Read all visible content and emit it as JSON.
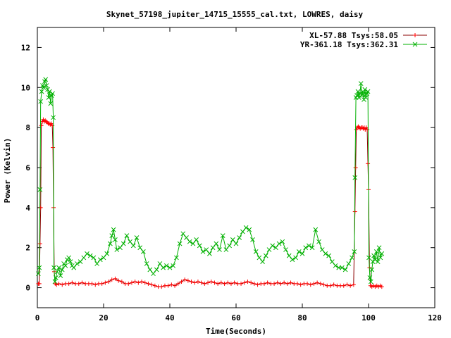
{
  "chart_data": {
    "type": "line",
    "title": "Skynet_57198_jupiter_14715_15555_cal.txt, LOWRES, daisy",
    "xlabel": "Time(Seconds)",
    "ylabel": "Power (Kelvin)",
    "xlim": [
      0,
      120
    ],
    "ylim": [
      -1,
      13
    ],
    "x_ticks": [
      0,
      20,
      40,
      60,
      80,
      100,
      120
    ],
    "y_ticks": [
      0,
      2,
      4,
      6,
      8,
      10,
      12
    ],
    "grid": false,
    "legend_position": "top-right",
    "series": [
      {
        "name": "XL-57.88 Tsys:58.05",
        "color": "#ff0000",
        "line_color": "#8b0000",
        "marker": "plus",
        "points": [
          [
            0.3,
            0.2
          ],
          [
            0.6,
            0.2
          ],
          [
            0.8,
            2.2
          ],
          [
            1.0,
            4.0
          ],
          [
            1.2,
            8.1
          ],
          [
            1.5,
            8.3
          ],
          [
            1.8,
            8.4
          ],
          [
            2.1,
            8.3
          ],
          [
            2.4,
            8.35
          ],
          [
            2.7,
            8.3
          ],
          [
            3.0,
            8.25
          ],
          [
            3.3,
            8.2
          ],
          [
            3.6,
            8.2
          ],
          [
            3.9,
            8.15
          ],
          [
            4.2,
            8.2
          ],
          [
            4.5,
            8.1
          ],
          [
            4.7,
            7.0
          ],
          [
            4.9,
            4.0
          ],
          [
            5.1,
            0.8
          ],
          [
            5.4,
            0.2
          ],
          [
            5.8,
            0.15
          ],
          [
            6.5,
            0.2
          ],
          [
            7.5,
            0.15
          ],
          [
            8.5,
            0.2
          ],
          [
            9.5,
            0.2
          ],
          [
            10.5,
            0.25
          ],
          [
            11.5,
            0.2
          ],
          [
            12.5,
            0.2
          ],
          [
            13.5,
            0.25
          ],
          [
            14.5,
            0.2
          ],
          [
            15.5,
            0.2
          ],
          [
            16.5,
            0.2
          ],
          [
            17.5,
            0.15
          ],
          [
            18.5,
            0.2
          ],
          [
            19.5,
            0.2
          ],
          [
            20.5,
            0.25
          ],
          [
            21.5,
            0.3
          ],
          [
            22.5,
            0.4
          ],
          [
            23.5,
            0.45
          ],
          [
            24.5,
            0.35
          ],
          [
            25.5,
            0.3
          ],
          [
            26.5,
            0.2
          ],
          [
            27.5,
            0.2
          ],
          [
            28.5,
            0.25
          ],
          [
            29.5,
            0.3
          ],
          [
            30.5,
            0.25
          ],
          [
            31.5,
            0.3
          ],
          [
            32.5,
            0.25
          ],
          [
            33.5,
            0.2
          ],
          [
            34.5,
            0.15
          ],
          [
            35.5,
            0.1
          ],
          [
            36.5,
            0.05
          ],
          [
            37.5,
            0.05
          ],
          [
            38.5,
            0.1
          ],
          [
            39.5,
            0.1
          ],
          [
            40.5,
            0.15
          ],
          [
            41.5,
            0.1
          ],
          [
            42.5,
            0.2
          ],
          [
            43.5,
            0.3
          ],
          [
            44.5,
            0.4
          ],
          [
            45.5,
            0.35
          ],
          [
            46.5,
            0.3
          ],
          [
            47.5,
            0.25
          ],
          [
            48.5,
            0.3
          ],
          [
            49.5,
            0.25
          ],
          [
            50.5,
            0.2
          ],
          [
            51.5,
            0.25
          ],
          [
            52.5,
            0.3
          ],
          [
            53.5,
            0.25
          ],
          [
            54.5,
            0.2
          ],
          [
            55.5,
            0.25
          ],
          [
            56.5,
            0.2
          ],
          [
            57.5,
            0.25
          ],
          [
            58.5,
            0.2
          ],
          [
            59.5,
            0.25
          ],
          [
            60.5,
            0.2
          ],
          [
            61.5,
            0.2
          ],
          [
            62.5,
            0.25
          ],
          [
            63.5,
            0.3
          ],
          [
            64.5,
            0.25
          ],
          [
            65.5,
            0.2
          ],
          [
            66.5,
            0.15
          ],
          [
            67.5,
            0.2
          ],
          [
            68.5,
            0.2
          ],
          [
            69.5,
            0.25
          ],
          [
            70.5,
            0.2
          ],
          [
            71.5,
            0.2
          ],
          [
            72.5,
            0.25
          ],
          [
            73.5,
            0.2
          ],
          [
            74.5,
            0.25
          ],
          [
            75.5,
            0.2
          ],
          [
            76.5,
            0.25
          ],
          [
            77.5,
            0.2
          ],
          [
            78.5,
            0.2
          ],
          [
            79.5,
            0.15
          ],
          [
            80.5,
            0.2
          ],
          [
            81.5,
            0.2
          ],
          [
            82.5,
            0.15
          ],
          [
            83.5,
            0.2
          ],
          [
            84.5,
            0.25
          ],
          [
            85.5,
            0.2
          ],
          [
            86.5,
            0.15
          ],
          [
            87.5,
            0.1
          ],
          [
            88.5,
            0.1
          ],
          [
            89.5,
            0.15
          ],
          [
            90.5,
            0.1
          ],
          [
            91.5,
            0.1
          ],
          [
            92.5,
            0.1
          ],
          [
            93.5,
            0.15
          ],
          [
            94.5,
            0.1
          ],
          [
            95.5,
            0.15
          ],
          [
            95.9,
            3.8
          ],
          [
            96.1,
            6.0
          ],
          [
            96.3,
            7.9
          ],
          [
            96.6,
            8.0
          ],
          [
            96.9,
            8.05
          ],
          [
            97.2,
            8.0
          ],
          [
            97.5,
            7.95
          ],
          [
            97.8,
            8.0
          ],
          [
            98.1,
            8.0
          ],
          [
            98.4,
            7.95
          ],
          [
            98.7,
            8.0
          ],
          [
            99.0,
            7.9
          ],
          [
            99.3,
            8.0
          ],
          [
            99.6,
            7.9
          ],
          [
            99.8,
            6.2
          ],
          [
            100.0,
            4.9
          ],
          [
            100.3,
            1.0
          ],
          [
            100.6,
            0.1
          ],
          [
            101.0,
            0.05
          ],
          [
            101.5,
            0.1
          ],
          [
            102.0,
            0.05
          ],
          [
            102.5,
            0.1
          ],
          [
            103.0,
            0.05
          ],
          [
            103.5,
            0.1
          ],
          [
            104.0,
            0.05
          ]
        ]
      },
      {
        "name": "YR-361.18 Tsys:362.31",
        "color": "#00b000",
        "line_color": "#00b000",
        "marker": "cross",
        "points": [
          [
            0.3,
            0.7
          ],
          [
            0.6,
            1.0
          ],
          [
            0.8,
            4.9
          ],
          [
            1.0,
            9.3
          ],
          [
            1.3,
            9.8
          ],
          [
            1.6,
            10.1
          ],
          [
            1.9,
            10.0
          ],
          [
            2.2,
            10.3
          ],
          [
            2.5,
            10.4
          ],
          [
            2.8,
            10.1
          ],
          [
            3.1,
            9.9
          ],
          [
            3.4,
            9.5
          ],
          [
            3.7,
            9.8
          ],
          [
            4.0,
            9.2
          ],
          [
            4.3,
            9.6
          ],
          [
            4.6,
            9.7
          ],
          [
            4.8,
            8.5
          ],
          [
            5.0,
            1.0
          ],
          [
            5.3,
            0.3
          ],
          [
            5.6,
            0.5
          ],
          [
            6.0,
            0.8
          ],
          [
            6.5,
            1.0
          ],
          [
            7.0,
            0.6
          ],
          [
            7.5,
            0.9
          ],
          [
            8.0,
            1.2
          ],
          [
            8.5,
            1.1
          ],
          [
            9.0,
            1.4
          ],
          [
            9.5,
            1.5
          ],
          [
            10.0,
            1.3
          ],
          [
            10.5,
            1.1
          ],
          [
            11.0,
            1.0
          ],
          [
            12.0,
            1.2
          ],
          [
            13.0,
            1.3
          ],
          [
            14.0,
            1.5
          ],
          [
            15.0,
            1.7
          ],
          [
            16.0,
            1.6
          ],
          [
            17.0,
            1.5
          ],
          [
            18.0,
            1.2
          ],
          [
            19.0,
            1.4
          ],
          [
            20.0,
            1.5
          ],
          [
            21.0,
            1.7
          ],
          [
            22.0,
            2.2
          ],
          [
            22.5,
            2.6
          ],
          [
            23.0,
            2.9
          ],
          [
            23.5,
            2.4
          ],
          [
            24.0,
            1.9
          ],
          [
            25.0,
            2.0
          ],
          [
            26.0,
            2.2
          ],
          [
            27.0,
            2.6
          ],
          [
            28.0,
            2.3
          ],
          [
            29.0,
            2.1
          ],
          [
            30.0,
            2.5
          ],
          [
            31.0,
            2.0
          ],
          [
            32.0,
            1.8
          ],
          [
            33.0,
            1.2
          ],
          [
            34.0,
            0.9
          ],
          [
            35.0,
            0.7
          ],
          [
            36.0,
            0.9
          ],
          [
            37.0,
            1.2
          ],
          [
            38.0,
            1.0
          ],
          [
            39.0,
            1.1
          ],
          [
            40.0,
            1.0
          ],
          [
            41.0,
            1.1
          ],
          [
            42.0,
            1.5
          ],
          [
            43.0,
            2.2
          ],
          [
            44.0,
            2.7
          ],
          [
            45.0,
            2.5
          ],
          [
            46.0,
            2.3
          ],
          [
            47.0,
            2.2
          ],
          [
            48.0,
            2.4
          ],
          [
            49.0,
            2.1
          ],
          [
            50.0,
            1.8
          ],
          [
            51.0,
            1.9
          ],
          [
            52.0,
            1.7
          ],
          [
            53.0,
            2.0
          ],
          [
            54.0,
            2.2
          ],
          [
            55.0,
            1.9
          ],
          [
            56.0,
            2.6
          ],
          [
            57.0,
            1.9
          ],
          [
            58.0,
            2.1
          ],
          [
            59.0,
            2.4
          ],
          [
            60.0,
            2.2
          ],
          [
            61.0,
            2.5
          ],
          [
            62.0,
            2.8
          ],
          [
            63.0,
            3.0
          ],
          [
            64.0,
            2.9
          ],
          [
            65.0,
            2.4
          ],
          [
            66.0,
            1.8
          ],
          [
            67.0,
            1.5
          ],
          [
            68.0,
            1.3
          ],
          [
            69.0,
            1.6
          ],
          [
            70.0,
            1.9
          ],
          [
            71.0,
            2.1
          ],
          [
            72.0,
            2.0
          ],
          [
            73.0,
            2.2
          ],
          [
            74.0,
            2.3
          ],
          [
            75.0,
            1.9
          ],
          [
            76.0,
            1.6
          ],
          [
            77.0,
            1.4
          ],
          [
            78.0,
            1.5
          ],
          [
            79.0,
            1.8
          ],
          [
            80.0,
            1.7
          ],
          [
            81.0,
            2.0
          ],
          [
            82.0,
            2.1
          ],
          [
            83.0,
            2.0
          ],
          [
            84.0,
            2.9
          ],
          [
            85.0,
            2.3
          ],
          [
            86.0,
            1.9
          ],
          [
            87.0,
            1.7
          ],
          [
            88.0,
            1.6
          ],
          [
            89.0,
            1.3
          ],
          [
            90.0,
            1.1
          ],
          [
            91.0,
            1.0
          ],
          [
            92.0,
            1.0
          ],
          [
            93.0,
            0.9
          ],
          [
            94.0,
            1.2
          ],
          [
            95.0,
            1.5
          ],
          [
            95.7,
            1.8
          ],
          [
            95.9,
            5.5
          ],
          [
            96.2,
            9.5
          ],
          [
            96.5,
            9.6
          ],
          [
            96.8,
            9.8
          ],
          [
            97.1,
            9.5
          ],
          [
            97.4,
            9.7
          ],
          [
            97.7,
            10.2
          ],
          [
            98.0,
            9.6
          ],
          [
            98.3,
            9.8
          ],
          [
            98.6,
            9.4
          ],
          [
            98.9,
            9.9
          ],
          [
            99.2,
            9.5
          ],
          [
            99.5,
            9.7
          ],
          [
            99.8,
            9.8
          ],
          [
            100.1,
            1.5
          ],
          [
            100.4,
            0.5
          ],
          [
            100.7,
            0.3
          ],
          [
            101.0,
            0.9
          ],
          [
            101.3,
            1.3
          ],
          [
            101.6,
            1.6
          ],
          [
            102.0,
            1.4
          ],
          [
            102.4,
            1.8
          ],
          [
            102.8,
            1.3
          ],
          [
            103.2,
            2.0
          ],
          [
            103.6,
            1.5
          ],
          [
            104.0,
            1.7
          ]
        ]
      }
    ]
  }
}
